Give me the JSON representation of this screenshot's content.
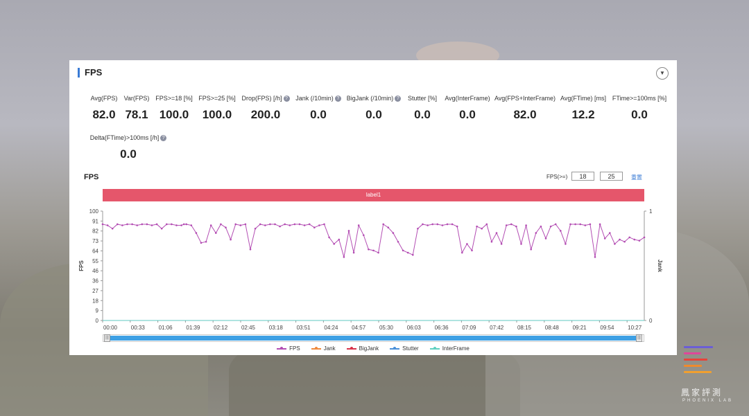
{
  "panel": {
    "title": "FPS",
    "collapse_icon": "chevron-down-icon"
  },
  "metrics": [
    {
      "label": "Avg(FPS)",
      "value": "82.0",
      "help": false
    },
    {
      "label": "Var(FPS)",
      "value": "78.1",
      "help": false
    },
    {
      "label": "FPS>=18 [%]",
      "value": "100.0",
      "help": false
    },
    {
      "label": "FPS>=25 [%]",
      "value": "100.0",
      "help": false
    },
    {
      "label": "Drop(FPS) [/h]",
      "value": "200.0",
      "help": true
    },
    {
      "label": "Jank (/10min)",
      "value": "0.0",
      "help": true
    },
    {
      "label": "BigJank (/10min)",
      "value": "0.0",
      "help": true
    },
    {
      "label": "Stutter [%]",
      "value": "0.0",
      "help": false
    },
    {
      "label": "Avg(InterFrame)",
      "value": "0.0",
      "help": false
    },
    {
      "label": "Avg(FPS+InterFrame)",
      "value": "82.0",
      "help": false
    },
    {
      "label": "Avg(FTime) [ms]",
      "value": "12.2",
      "help": false
    },
    {
      "label": "FTime>=100ms [%]",
      "value": "0.0",
      "help": false
    },
    {
      "label": "Delta(FTime)>100ms [/h]",
      "value": "0.0",
      "help": true
    }
  ],
  "chart_header": {
    "title": "FPS",
    "threshold_label": "FPS(>=)",
    "threshold_1": "18",
    "threshold_2": "25",
    "reset_label": "重置"
  },
  "label_bar": "label1",
  "legend": [
    {
      "name": "FPS",
      "color": "#b34db3"
    },
    {
      "name": "Jank",
      "color": "#f08a3c"
    },
    {
      "name": "BigJank",
      "color": "#d9334a"
    },
    {
      "name": "Stutter",
      "color": "#4a90d9"
    },
    {
      "name": "InterFrame",
      "color": "#5fd0c0"
    }
  ],
  "watermark": {
    "name": "鳳家評測",
    "sub": "PHOENIX LAB",
    "bar_colors": [
      "#6b5ed6",
      "#e0479a",
      "#e8433a",
      "#f08a2c",
      "#f0a030"
    ]
  },
  "chart_data": {
    "type": "line",
    "title": "FPS",
    "ylabel": "FPS",
    "y2label": "Jank",
    "ylim": [
      0,
      100
    ],
    "y2lim": [
      0,
      1
    ],
    "yticks": [
      "0",
      "9",
      "18",
      "27",
      "36",
      "46",
      "55",
      "64",
      "73",
      "82",
      "91",
      "100"
    ],
    "y2ticks": [
      "0",
      "1"
    ],
    "xlim": [
      0,
      660
    ],
    "xtick_labels": [
      "00:00",
      "00:33",
      "01:06",
      "01:39",
      "02:12",
      "02:45",
      "03:18",
      "03:51",
      "04:24",
      "04:57",
      "05:30",
      "06:03",
      "06:36",
      "07:09",
      "07:42",
      "08:15",
      "08:48",
      "09:21",
      "09:54",
      "10:27"
    ],
    "series": [
      {
        "name": "FPS",
        "color": "#b34db3",
        "x": [
          0,
          6,
          12,
          18,
          24,
          30,
          36,
          42,
          48,
          54,
          60,
          66,
          72,
          78,
          84,
          90,
          96,
          99,
          102,
          108,
          114,
          120,
          126,
          132,
          138,
          144,
          150,
          156,
          162,
          168,
          174,
          180,
          186,
          192,
          198,
          204,
          210,
          216,
          222,
          228,
          234,
          240,
          246,
          252,
          258,
          264,
          270,
          276,
          282,
          288,
          294,
          300,
          306,
          312,
          318,
          324,
          330,
          336,
          342,
          348,
          354,
          360,
          366,
          372,
          378,
          384,
          390,
          396,
          402,
          408,
          414,
          420,
          426,
          432,
          438,
          444,
          450,
          456,
          462,
          468,
          474,
          480,
          486,
          492,
          498,
          504,
          510,
          516,
          522,
          528,
          534,
          540,
          546,
          552,
          558,
          564,
          570,
          576,
          582,
          588,
          594,
          600,
          606,
          612,
          618,
          624,
          630,
          636,
          642,
          648,
          654,
          660
        ],
        "y": [
          88,
          87,
          84,
          88,
          87,
          88,
          88,
          87,
          88,
          88,
          87,
          88,
          84,
          88,
          88,
          87,
          87,
          88,
          88,
          87,
          80,
          71,
          72,
          87,
          80,
          88,
          85,
          74,
          88,
          87,
          88,
          65,
          84,
          88,
          87,
          88,
          88,
          86,
          88,
          87,
          88,
          88,
          87,
          88,
          85,
          87,
          88,
          76,
          70,
          74,
          58,
          82,
          62,
          87,
          78,
          65,
          64,
          62,
          88,
          85,
          80,
          72,
          64,
          62,
          60,
          84,
          88,
          87,
          88,
          88,
          87,
          88,
          88,
          86,
          62,
          70,
          64,
          86,
          84,
          88,
          72,
          80,
          70,
          87,
          88,
          86,
          70,
          87,
          65,
          80,
          86,
          75,
          86,
          88,
          82,
          70,
          88,
          88,
          88,
          87,
          88,
          58,
          88,
          75,
          80,
          70,
          74,
          72,
          76,
          74,
          73,
          76
        ]
      },
      {
        "name": "Jank",
        "color": "#f08a3c",
        "x": [
          0,
          660
        ],
        "y": [
          0,
          0
        ]
      },
      {
        "name": "BigJank",
        "color": "#d9334a",
        "x": [
          0,
          660
        ],
        "y": [
          0,
          0
        ]
      },
      {
        "name": "Stutter",
        "color": "#4a90d9",
        "x": [
          0,
          660
        ],
        "y": [
          0,
          0
        ]
      },
      {
        "name": "InterFrame",
        "color": "#5fd0c0",
        "x": [
          0,
          660
        ],
        "y": [
          0,
          0
        ]
      }
    ],
    "legend_position": "bottom",
    "grid": false
  }
}
